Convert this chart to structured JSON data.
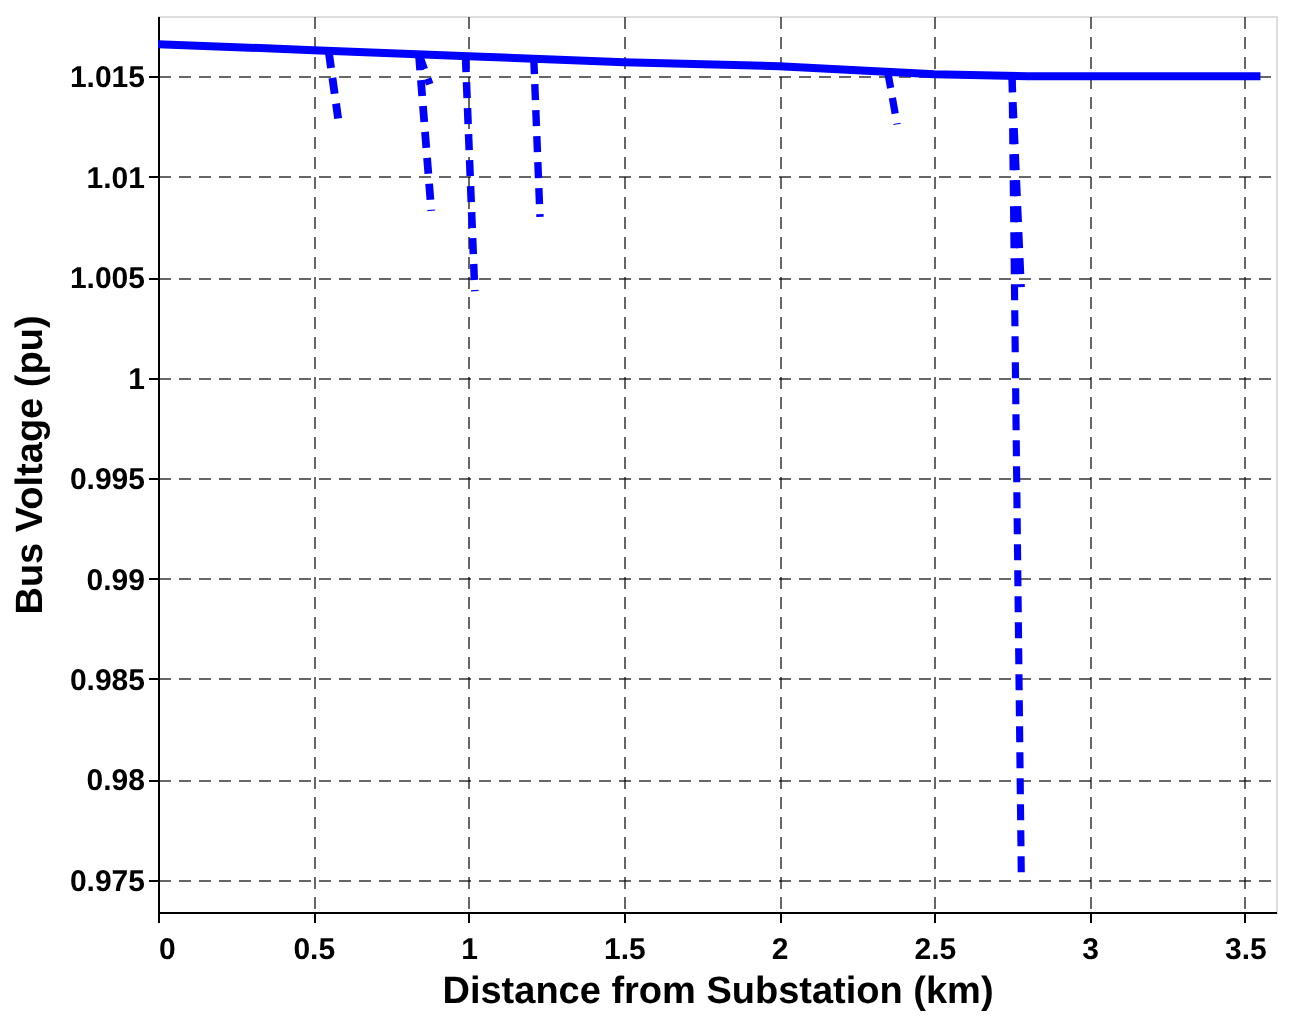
{
  "chart_data": {
    "type": "line",
    "xlabel": "Distance from Substation (km)",
    "ylabel": "Bus Voltage (pu)",
    "xlim": [
      0,
      3.6
    ],
    "ylim": [
      0.9734,
      1.018
    ],
    "xticks": [
      0,
      0.5,
      1,
      1.5,
      2,
      2.5,
      3,
      3.5
    ],
    "yticks": [
      0.975,
      0.98,
      0.985,
      0.99,
      0.995,
      1,
      1.005,
      1.01,
      1.015
    ],
    "grid": true,
    "series": [
      {
        "color": "#0000ff",
        "line_style": "solid",
        "x": [
          0,
          0.5,
          1,
          1.5,
          2,
          2.5,
          2.8,
          3.55
        ],
        "values": [
          1.0166,
          1.0163,
          1.016,
          1.0157,
          1.0155,
          1.0151,
          1.015,
          1.015
        ]
      },
      {
        "color": "#0000ff",
        "line_style": "dashed",
        "x": [
          0.55,
          0.58
        ],
        "values": [
          1.0162,
          1.0129
        ]
      },
      {
        "color": "#0000ff",
        "line_style": "dashed",
        "x": [
          0.84,
          0.88
        ],
        "values": [
          1.0161,
          1.0083
        ]
      },
      {
        "color": "#0000ff",
        "line_style": "dashed",
        "x": [
          0.84,
          0.875
        ],
        "values": [
          1.0161,
          1.0146
        ]
      },
      {
        "color": "#0000ff",
        "line_style": "dashed",
        "x": [
          0.99,
          1.02
        ],
        "values": [
          1.016,
          1.0043
        ]
      },
      {
        "color": "#0000ff",
        "line_style": "dashed",
        "x": [
          1.21,
          1.23
        ],
        "values": [
          1.0159,
          1.008
        ]
      },
      {
        "color": "#0000ff",
        "line_style": "dashed",
        "x": [
          2.35,
          2.38
        ],
        "values": [
          1.0152,
          1.0126
        ]
      },
      {
        "color": "#0000ff",
        "line_style": "dashed",
        "x": [
          2.75,
          2.78
        ],
        "values": [
          1.015,
          0.975
        ]
      },
      {
        "color": "#0000ff",
        "line_style": "dashed",
        "x": [
          2.75,
          2.78
        ],
        "values": [
          1.015,
          1.0045
        ]
      }
    ]
  }
}
